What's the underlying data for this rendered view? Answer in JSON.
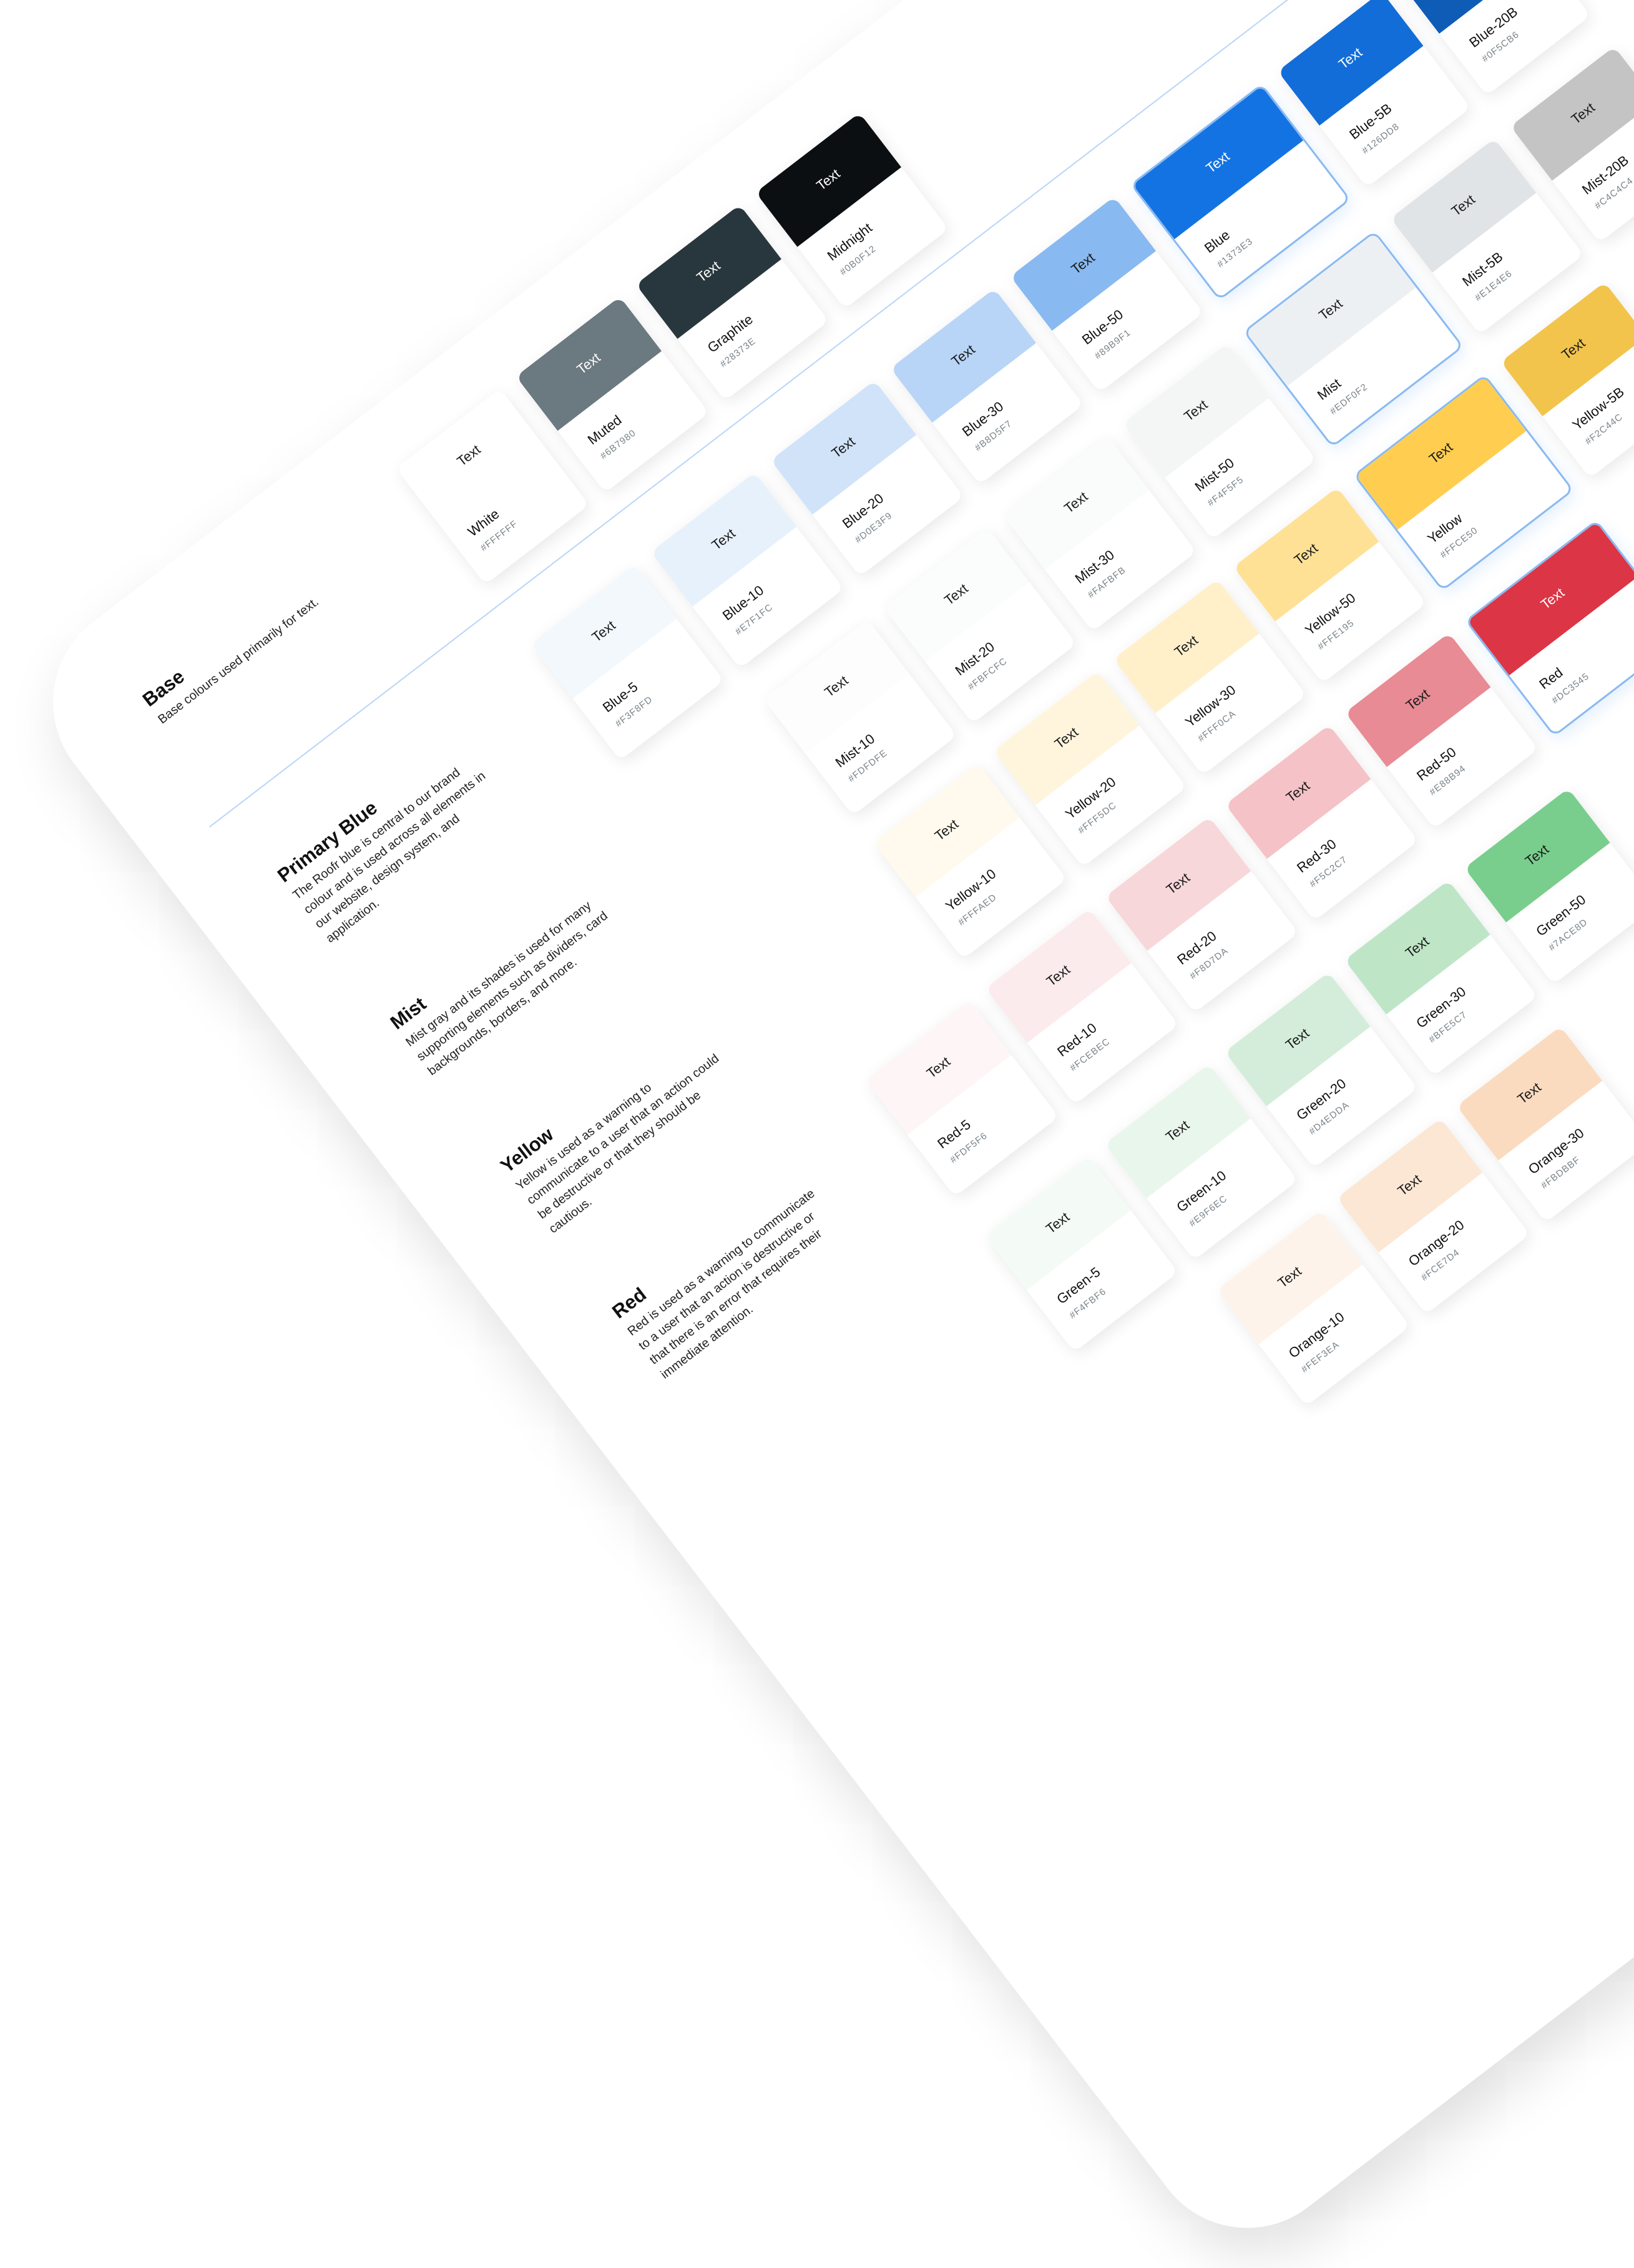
{
  "sections": [
    {
      "title": "Base",
      "description": "Base colours used primarily for text.",
      "swatches": [
        {
          "label": "Text",
          "name": "White",
          "hex": "#FFFFFF"
        },
        {
          "label": "Text",
          "name": "Muted",
          "hex": "#6B7980"
        },
        {
          "label": "Text",
          "name": "Graphite",
          "hex": "#28373E"
        },
        {
          "label": "Text",
          "name": "Midnight",
          "hex": "#0B0F12"
        }
      ]
    },
    {
      "title": "Primary Blue",
      "description": "The Roofr blue is central to our brand colour and is used across all elements in our website, design system, and application.",
      "swatches": [
        {
          "label": "Text",
          "name": "Blue-5",
          "hex": "#F3F8FD"
        },
        {
          "label": "Text",
          "name": "Blue-10",
          "hex": "#E7F1FC"
        },
        {
          "label": "Text",
          "name": "Blue-20",
          "hex": "#D0E3F9"
        },
        {
          "label": "Text",
          "name": "Blue-30",
          "hex": "#B8D5F7"
        },
        {
          "label": "Text",
          "name": "Blue-50",
          "hex": "#89B9F1"
        },
        {
          "label": "Text",
          "name": "Blue",
          "hex": "#1373E3",
          "highlighted": true
        },
        {
          "label": "Text",
          "name": "Blue-5B",
          "hex": "#126DD8"
        },
        {
          "label": "Text",
          "name": "Blue-20B",
          "hex": "#0F5CB6"
        }
      ]
    },
    {
      "title": "Mist",
      "description": "Mist gray and its shades is used for many supporting elements such as dividers, card backgrounds, borders, and more.",
      "swatches": [
        {
          "label": "Text",
          "name": "Mist-10",
          "hex": "#FDFDFE"
        },
        {
          "label": "Text",
          "name": "Mist-20",
          "hex": "#FBFCFC"
        },
        {
          "label": "Text",
          "name": "Mist-30",
          "hex": "#FAFBFB"
        },
        {
          "label": "Text",
          "name": "Mist-50",
          "hex": "#F4F5F5"
        },
        {
          "label": "Text",
          "name": "Mist",
          "hex": "#EDF0F2",
          "highlighted": true
        },
        {
          "label": "Text",
          "name": "Mist-5B",
          "hex": "#E1E4E6"
        },
        {
          "label": "Text",
          "name": "Mist-20B",
          "hex": "#C4C4C4"
        }
      ]
    },
    {
      "title": "Yellow",
      "description": "Yellow is used as a warning to communicate to a user that an action could be destructive or that they should be cautious.",
      "swatches": [
        {
          "label": "Text",
          "name": "Yellow-10",
          "hex": "#FFFAED"
        },
        {
          "label": "Text",
          "name": "Yellow-20",
          "hex": "#FFF5DC"
        },
        {
          "label": "Text",
          "name": "Yellow-30",
          "hex": "#FFF0CA"
        },
        {
          "label": "Text",
          "name": "Yellow-50",
          "hex": "#FFE195"
        },
        {
          "label": "Text",
          "name": "Yellow",
          "hex": "#FFCE50",
          "highlighted": true
        },
        {
          "label": "Text",
          "name": "Yellow-5B",
          "hex": "#F2C44C"
        }
      ]
    },
    {
      "title": "Red",
      "description": "Red is used as a warning to communicate to a user that an action is destructive or that there is an error that requires their immediate attention.",
      "swatches": [
        {
          "label": "Text",
          "name": "Red-5",
          "hex": "#FDF5F6"
        },
        {
          "label": "Text",
          "name": "Red-10",
          "hex": "#FCEBEC"
        },
        {
          "label": "Text",
          "name": "Red-20",
          "hex": "#F8D7DA"
        },
        {
          "label": "Text",
          "name": "Red-30",
          "hex": "#F5C2C7"
        },
        {
          "label": "Text",
          "name": "Red-50",
          "hex": "#E88B94"
        },
        {
          "label": "Text",
          "name": "Red",
          "hex": "#DC3545",
          "highlighted": true
        }
      ]
    },
    {
      "swatches": [
        {
          "label": "Text",
          "name": "Green-5",
          "hex": "#F4FBF6"
        },
        {
          "label": "Text",
          "name": "Green-10",
          "hex": "#E9F6EC"
        },
        {
          "label": "Text",
          "name": "Green-20",
          "hex": "#D4EDDA"
        },
        {
          "label": "Text",
          "name": "Green-30",
          "hex": "#BFE5C7"
        },
        {
          "label": "Text",
          "name": "Green-50",
          "hex": "#7ACE8D"
        }
      ]
    },
    {
      "swatches": [
        {
          "label": "Text",
          "name": "Orange-10",
          "hex": "#FEF3EA"
        },
        {
          "label": "Text",
          "name": "Orange-20",
          "hex": "#FCE7D4"
        },
        {
          "label": "Text",
          "name": "Orange-30",
          "hex": "#FBDBBF"
        }
      ]
    }
  ]
}
